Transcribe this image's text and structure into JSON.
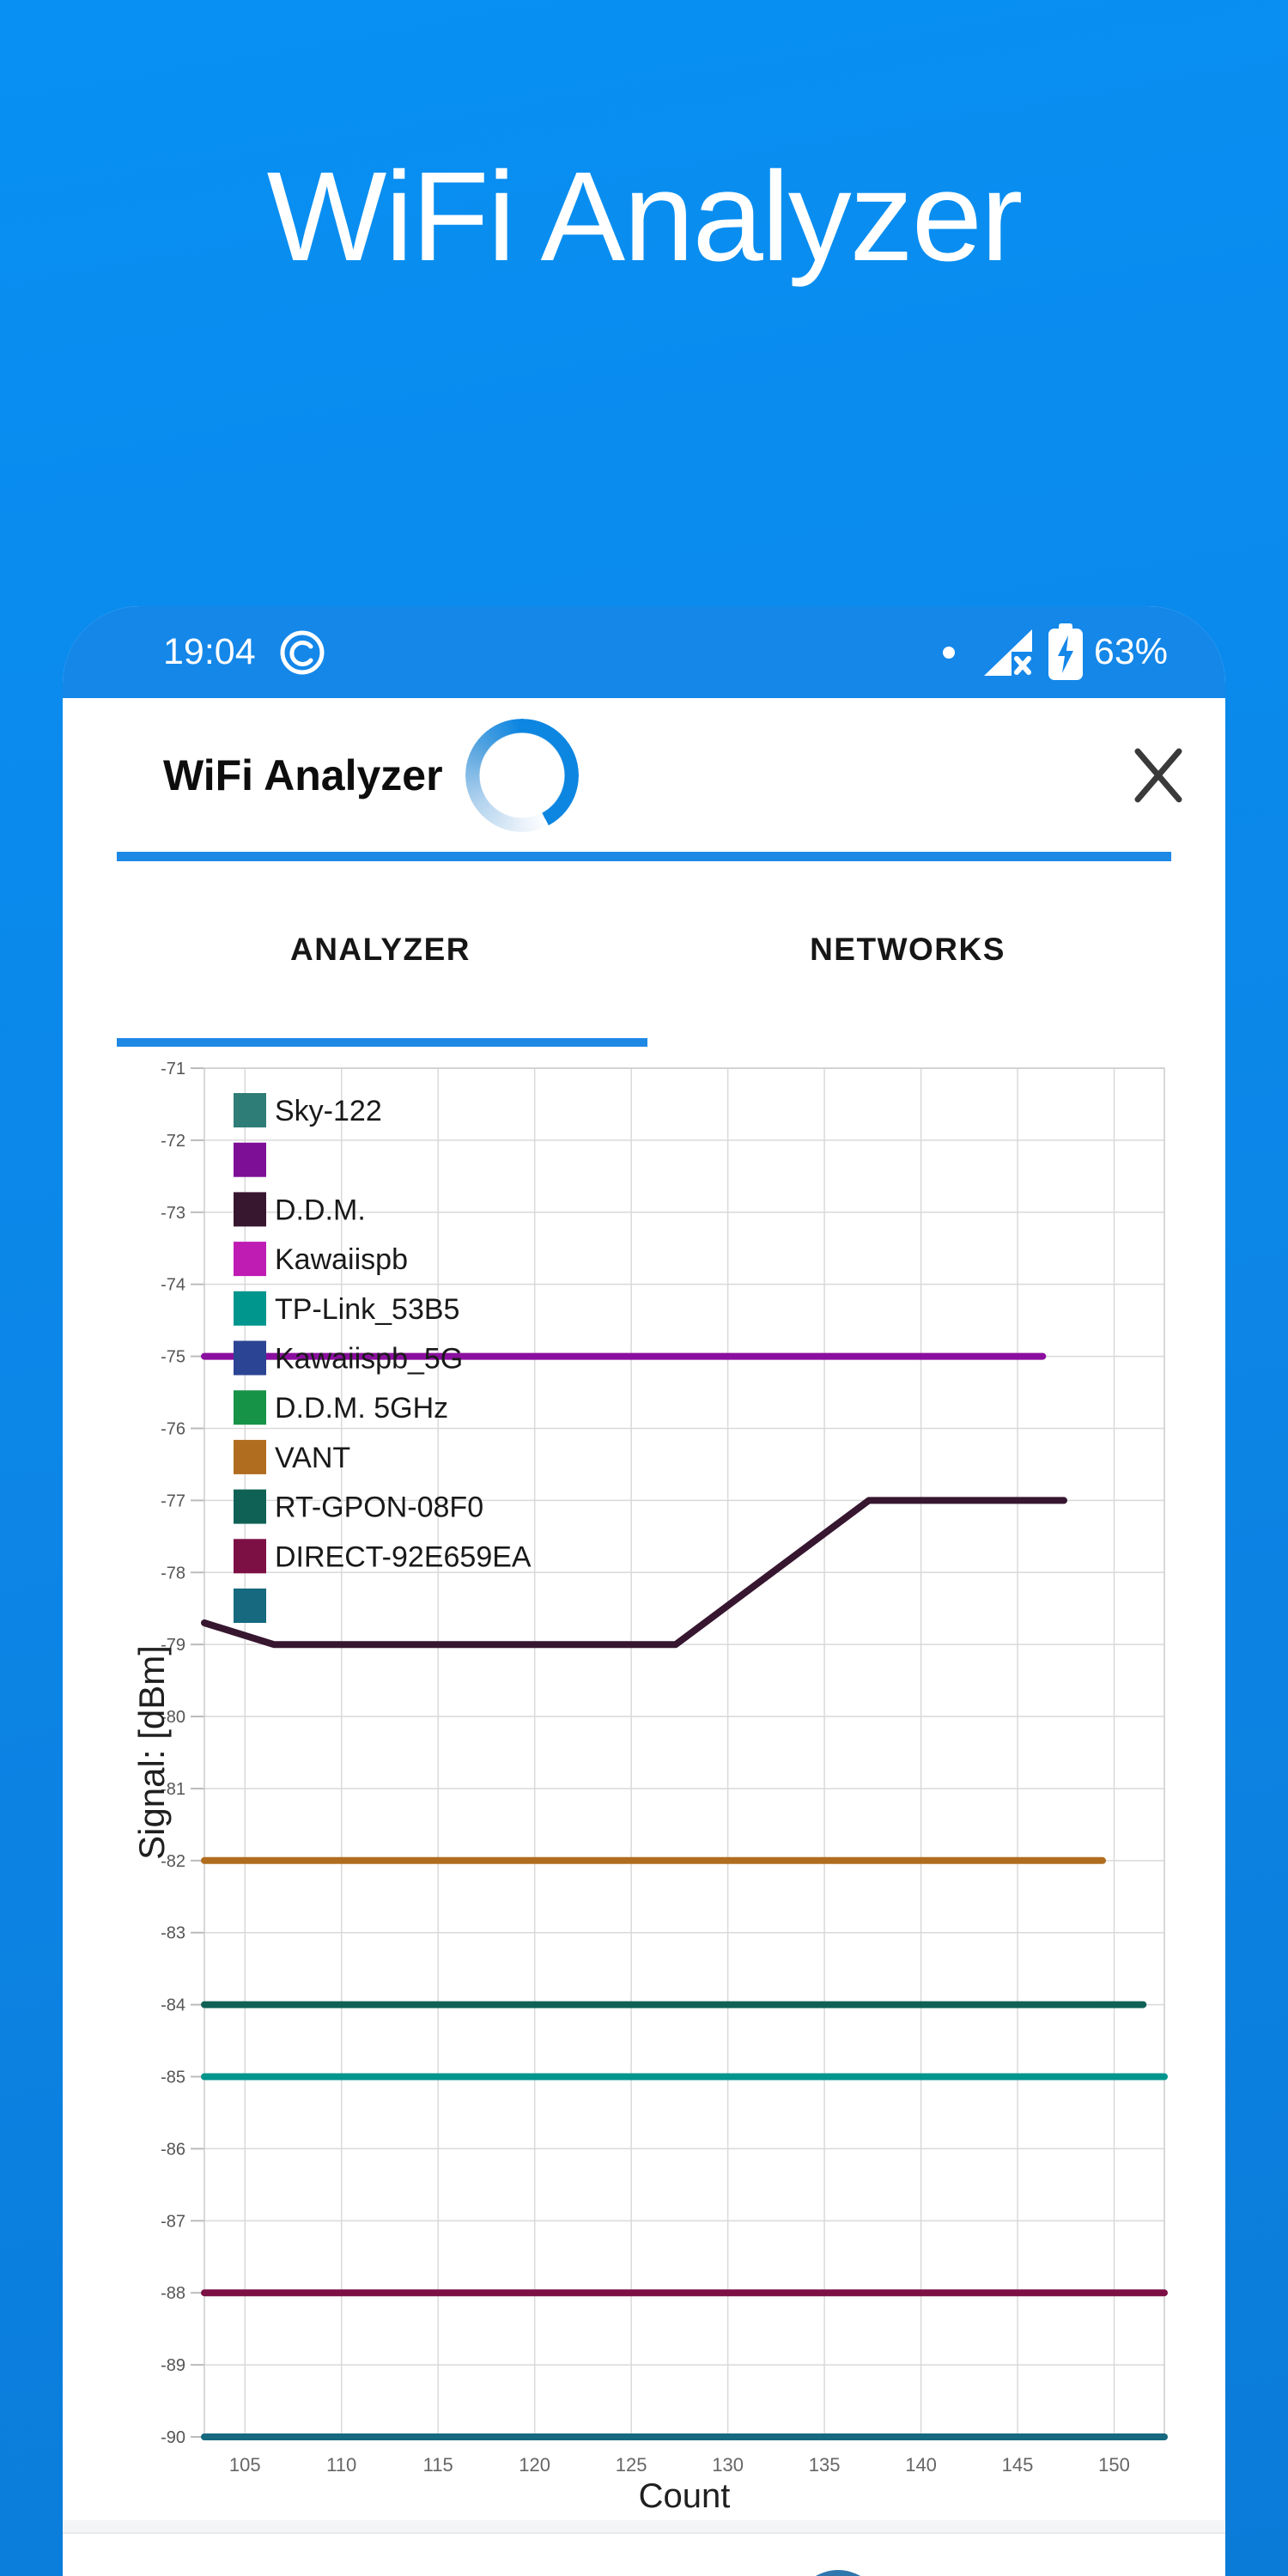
{
  "page_title": "WiFi Analyzer",
  "colors": {
    "background_top": "#0890f3",
    "background_bottom": "#0b7bd8",
    "status_bar": "#1487e9",
    "accent_blue": "#1e88e5",
    "spinner_blue": "#0d86e1",
    "fab_blue": "#2f76ad"
  },
  "phone": {
    "status_bar": {
      "time": "19:04",
      "battery": "63%",
      "icons": [
        "app-notification-ring-icon",
        "notification-dot",
        "no-internet-signal-icon",
        "battery-charging-icon"
      ]
    },
    "app_bar": {
      "title": "WiFi Analyzer",
      "icons": [
        "loading-spinner",
        "close-icon"
      ]
    },
    "tabs": [
      {
        "label": "ANALYZER",
        "active": true
      },
      {
        "label": "NETWORKS",
        "active": false
      }
    ]
  },
  "chart_data": {
    "type": "line",
    "title": "",
    "xlabel": "Count",
    "ylabel": "Signal: [dBm]",
    "xlim": [
      102.9,
      152.6
    ],
    "ylim": [
      -90,
      -71
    ],
    "x_ticks": [
      105,
      110,
      115,
      120,
      125,
      130,
      135,
      140,
      145,
      150
    ],
    "y_ticks": [
      -71,
      -72,
      -73,
      -74,
      -75,
      -76,
      -77,
      -78,
      -79,
      -80,
      -81,
      -82,
      -83,
      -84,
      -85,
      -86,
      -87,
      -88,
      -89,
      -90
    ],
    "grid": true,
    "legend_position": "upper-left-overlay",
    "legend": [
      {
        "label": "Sky-122",
        "color": "#2e7d76"
      },
      {
        "label": "",
        "color": "#7d0f96"
      },
      {
        "label": "D.D.M.",
        "color": "#371630"
      },
      {
        "label": "Kawaiispb",
        "color": "#bf1cb4"
      },
      {
        "label": "TP-Link_53B5",
        "color": "#00958d"
      },
      {
        "label": "Kawaiispb_5G",
        "color": "#2c4494"
      },
      {
        "label": "D.D.M. 5GHz",
        "color": "#179347"
      },
      {
        "label": "VANT",
        "color": "#b06d1f"
      },
      {
        "label": "RT-GPON-08F0",
        "color": "#0f6156"
      },
      {
        "label": "DIRECT-92E659EA",
        "color": "#7c1045"
      },
      {
        "label": "",
        "color": "#16697e"
      }
    ],
    "series": [
      {
        "name": "",
        "color": "#8a0f9e",
        "points": [
          [
            102.9,
            -75
          ],
          [
            146.3,
            -75
          ]
        ]
      },
      {
        "name": "D.D.M.",
        "color": "#371630",
        "points": [
          [
            102.9,
            -78.7
          ],
          [
            106.5,
            -79
          ],
          [
            127.3,
            -79
          ],
          [
            137.3,
            -77
          ],
          [
            147.4,
            -77
          ]
        ]
      },
      {
        "name": "VANT",
        "color": "#b06d1f",
        "points": [
          [
            102.9,
            -82
          ],
          [
            149.4,
            -82
          ]
        ]
      },
      {
        "name": "RT-GPON-08F0",
        "color": "#0f6156",
        "points": [
          [
            102.9,
            -84
          ],
          [
            151.5,
            -84
          ]
        ]
      },
      {
        "name": "TP-Link_53B5",
        "color": "#00958d",
        "points": [
          [
            102.9,
            -85
          ],
          [
            152.6,
            -85
          ]
        ]
      },
      {
        "name": "DIRECT-92E659EA",
        "color": "#7c1045",
        "points": [
          [
            102.9,
            -88
          ],
          [
            152.6,
            -88
          ]
        ]
      },
      {
        "name": "",
        "color": "#16697e",
        "points": [
          [
            102.9,
            -90
          ],
          [
            152.6,
            -90
          ]
        ]
      }
    ]
  }
}
